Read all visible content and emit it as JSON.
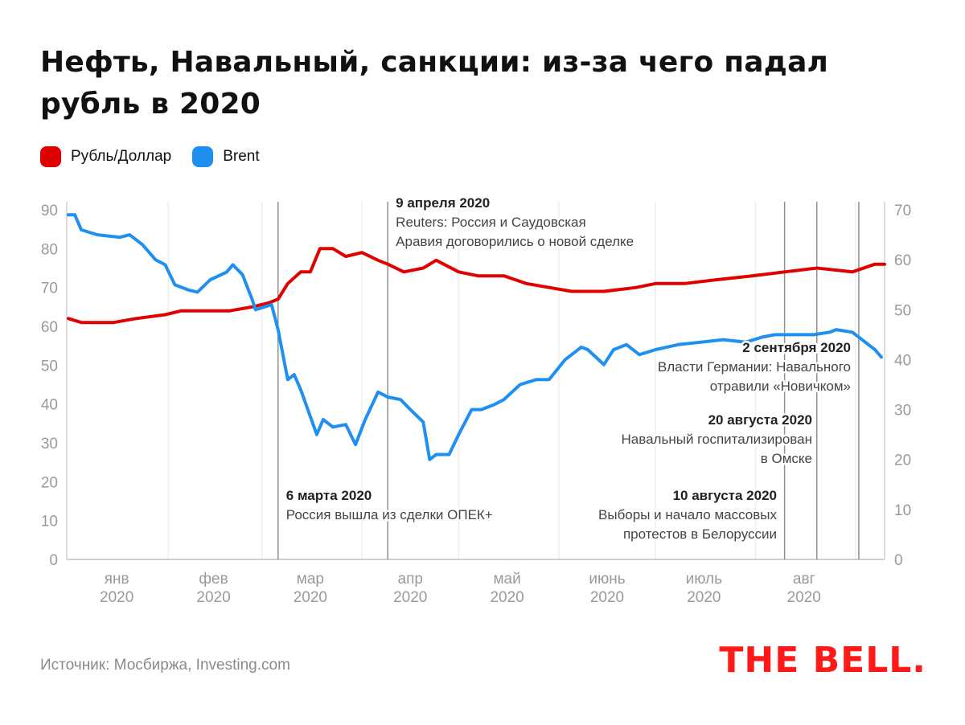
{
  "title": "Нефть, Навальный, санкции: из-за чего падал рубль в 2020",
  "legend": [
    {
      "label": "Рубль/Доллар",
      "color": "#e00000"
    },
    {
      "label": "Brent",
      "color": "#1f8ff0"
    }
  ],
  "source": "Источник: Мосбиржа, Investing.com",
  "logo": {
    "text": "THE BELL",
    "dot": ".",
    "color": "#ff1a1a"
  },
  "chart_data": {
    "type": "line",
    "left_axis": {
      "ticks": [
        0,
        10,
        20,
        30,
        40,
        50,
        60,
        70,
        80,
        90
      ],
      "ylim": [
        0,
        90
      ]
    },
    "right_axis": {
      "ticks": [
        0,
        10,
        20,
        30,
        40,
        50,
        60,
        70
      ],
      "ylim": [
        0,
        70
      ]
    },
    "months": [
      {
        "name": "янв",
        "year": "2020"
      },
      {
        "name": "фев",
        "year": "2020"
      },
      {
        "name": "мар",
        "year": "2020"
      },
      {
        "name": "апр",
        "year": "2020"
      },
      {
        "name": "май",
        "year": "2020"
      },
      {
        "name": "июнь",
        "year": "2020"
      },
      {
        "name": "июль",
        "year": "2020"
      },
      {
        "name": "авг",
        "year": "2020"
      }
    ],
    "grid": "vertical",
    "series": [
      {
        "name": "Рубль/Доллар",
        "axis": "left",
        "color": "#e00000",
        "points": [
          [
            "2020-01-01",
            62
          ],
          [
            "2020-01-05",
            61
          ],
          [
            "2020-01-15",
            61
          ],
          [
            "2020-01-22",
            62
          ],
          [
            "2020-01-31",
            63
          ],
          [
            "2020-02-05",
            64
          ],
          [
            "2020-02-12",
            64
          ],
          [
            "2020-02-20",
            64
          ],
          [
            "2020-02-27",
            65
          ],
          [
            "2020-03-03",
            66
          ],
          [
            "2020-03-06",
            67
          ],
          [
            "2020-03-09",
            71
          ],
          [
            "2020-03-13",
            74
          ],
          [
            "2020-03-16",
            74
          ],
          [
            "2020-03-19",
            80
          ],
          [
            "2020-03-23",
            80
          ],
          [
            "2020-03-27",
            78
          ],
          [
            "2020-04-01",
            79
          ],
          [
            "2020-04-06",
            77
          ],
          [
            "2020-04-09",
            76
          ],
          [
            "2020-04-14",
            74
          ],
          [
            "2020-04-20",
            75
          ],
          [
            "2020-04-24",
            77
          ],
          [
            "2020-05-01",
            74
          ],
          [
            "2020-05-07",
            73
          ],
          [
            "2020-05-15",
            73
          ],
          [
            "2020-05-22",
            71
          ],
          [
            "2020-05-29",
            70
          ],
          [
            "2020-06-05",
            69
          ],
          [
            "2020-06-15",
            69
          ],
          [
            "2020-06-25",
            70
          ],
          [
            "2020-07-01",
            71
          ],
          [
            "2020-07-10",
            71
          ],
          [
            "2020-07-20",
            72
          ],
          [
            "2020-07-31",
            73
          ],
          [
            "2020-08-10",
            74
          ],
          [
            "2020-08-20",
            75
          ],
          [
            "2020-08-31",
            74
          ],
          [
            "2020-09-07",
            76
          ],
          [
            "2020-09-10",
            76
          ]
        ]
      },
      {
        "name": "Brent",
        "axis": "right",
        "color": "#1f8ff0",
        "points": [
          [
            "2020-01-01",
            69
          ],
          [
            "2020-01-03",
            69
          ],
          [
            "2020-01-05",
            66
          ],
          [
            "2020-01-10",
            65
          ],
          [
            "2020-01-17",
            64.5
          ],
          [
            "2020-01-20",
            65
          ],
          [
            "2020-01-24",
            63
          ],
          [
            "2020-01-28",
            60
          ],
          [
            "2020-01-31",
            59
          ],
          [
            "2020-02-03",
            55
          ],
          [
            "2020-02-07",
            54
          ],
          [
            "2020-02-10",
            53.5
          ],
          [
            "2020-02-14",
            56
          ],
          [
            "2020-02-19",
            57.5
          ],
          [
            "2020-02-21",
            59
          ],
          [
            "2020-02-24",
            57
          ],
          [
            "2020-02-27",
            52
          ],
          [
            "2020-02-28",
            50
          ],
          [
            "2020-03-04",
            51
          ],
          [
            "2020-03-06",
            46
          ],
          [
            "2020-03-09",
            36
          ],
          [
            "2020-03-11",
            37
          ],
          [
            "2020-03-13",
            34
          ],
          [
            "2020-03-18",
            25
          ],
          [
            "2020-03-20",
            28
          ],
          [
            "2020-03-23",
            26.5
          ],
          [
            "2020-03-27",
            27
          ],
          [
            "2020-03-30",
            23
          ],
          [
            "2020-04-02",
            28
          ],
          [
            "2020-04-06",
            33.5
          ],
          [
            "2020-04-09",
            32.5
          ],
          [
            "2020-04-13",
            32
          ],
          [
            "2020-04-16",
            30
          ],
          [
            "2020-04-20",
            27.5
          ],
          [
            "2020-04-22",
            20
          ],
          [
            "2020-04-24",
            21
          ],
          [
            "2020-04-28",
            21
          ],
          [
            "2020-05-01",
            25
          ],
          [
            "2020-05-05",
            30
          ],
          [
            "2020-05-08",
            30
          ],
          [
            "2020-05-12",
            31
          ],
          [
            "2020-05-15",
            32
          ],
          [
            "2020-05-20",
            35
          ],
          [
            "2020-05-25",
            36
          ],
          [
            "2020-05-29",
            36
          ],
          [
            "2020-06-03",
            40
          ],
          [
            "2020-06-08",
            42.5
          ],
          [
            "2020-06-10",
            42
          ],
          [
            "2020-06-15",
            39
          ],
          [
            "2020-06-18",
            42
          ],
          [
            "2020-06-22",
            43
          ],
          [
            "2020-06-26",
            41
          ],
          [
            "2020-07-01",
            42
          ],
          [
            "2020-07-08",
            43
          ],
          [
            "2020-07-15",
            43.5
          ],
          [
            "2020-07-22",
            44
          ],
          [
            "2020-07-29",
            43.5
          ],
          [
            "2020-08-03",
            44.5
          ],
          [
            "2020-08-07",
            45
          ],
          [
            "2020-08-12",
            45
          ],
          [
            "2020-08-19",
            45
          ],
          [
            "2020-08-24",
            45.5
          ],
          [
            "2020-08-26",
            46
          ],
          [
            "2020-08-31",
            45.5
          ],
          [
            "2020-09-03",
            44
          ],
          [
            "2020-09-07",
            42
          ],
          [
            "2020-09-09",
            40.5
          ]
        ]
      }
    ],
    "events": [
      {
        "date": "2020-03-06",
        "title": "6 марта 2020",
        "lines": [
          "Россия вышла из сделки ОПЕК+"
        ]
      },
      {
        "date": "2020-04-09",
        "title": "9 апреля 2020",
        "lines": [
          "Reuters: Россия и Саудовская",
          "Аравия договорились о новой сделке"
        ]
      },
      {
        "date": "2020-08-10",
        "title": "10 августа 2020",
        "lines": [
          "Выборы и начало массовых",
          "протестов в Белоруссии"
        ]
      },
      {
        "date": "2020-08-20",
        "title": "20 августа 2020",
        "lines": [
          "Навальный госпитализирован",
          "в Омске"
        ]
      },
      {
        "date": "2020-09-02",
        "title": "2 сентября 2020",
        "lines": [
          "Власти Германии: Навального",
          "отравили «Новичком»"
        ]
      }
    ]
  }
}
